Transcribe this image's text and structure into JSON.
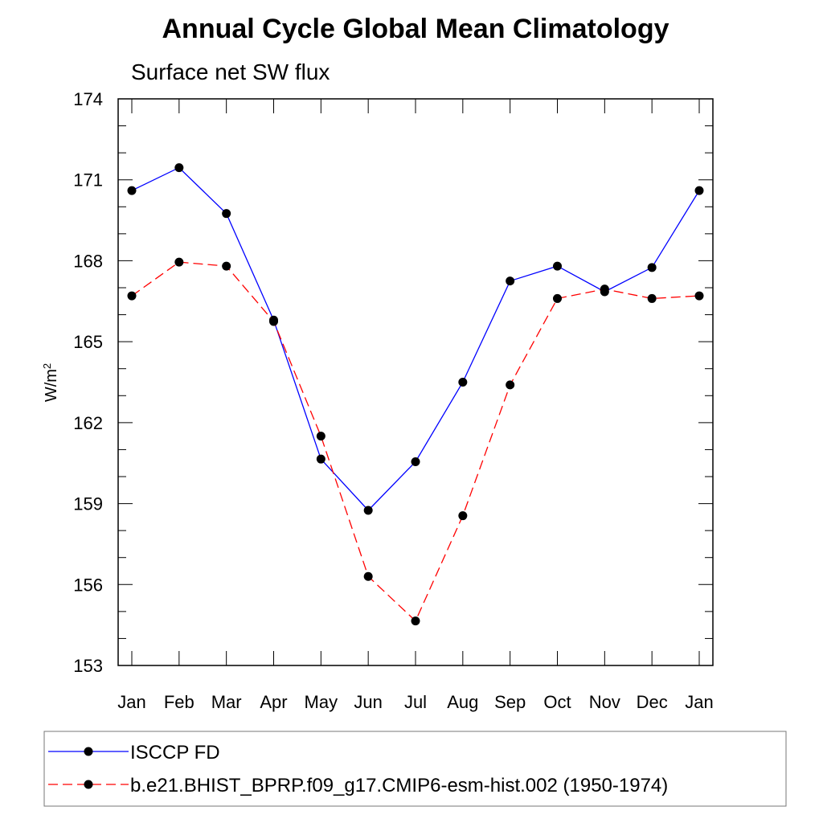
{
  "chart_data": {
    "type": "line",
    "title": "Annual Cycle Global Mean Climatology",
    "subtitle": "Surface net SW flux",
    "ylabel_base": "W/m",
    "ylabel_sup": "2",
    "xlabel": "",
    "categories": [
      "Jan",
      "Feb",
      "Mar",
      "Apr",
      "May",
      "Jun",
      "Jul",
      "Aug",
      "Sep",
      "Oct",
      "Nov",
      "Dec",
      "Jan"
    ],
    "ylim": [
      153,
      174
    ],
    "yticks": [
      153,
      156,
      159,
      162,
      165,
      168,
      171,
      174
    ],
    "yminor_step": 1,
    "grid": false,
    "legend_position": "bottom",
    "series": [
      {
        "name": "ISCCP FD",
        "color": "#0000ff",
        "dash": "solid",
        "values": [
          170.6,
          171.45,
          169.75,
          165.8,
          160.65,
          158.75,
          160.55,
          163.5,
          167.25,
          167.8,
          166.85,
          167.75,
          170.6
        ]
      },
      {
        "name": "b.e21.BHIST_BPRP.f09_g17.CMIP6-esm-hist.002 (1950-1974)",
        "color": "#ff0000",
        "dash": "dashed",
        "values": [
          166.7,
          167.95,
          167.8,
          165.75,
          161.5,
          156.3,
          154.65,
          158.55,
          163.4,
          166.6,
          166.95,
          166.6,
          166.7
        ]
      }
    ]
  }
}
